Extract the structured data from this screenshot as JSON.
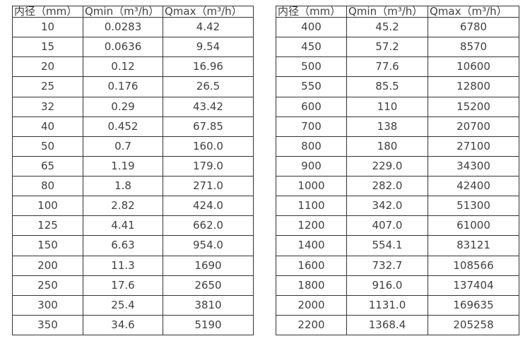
{
  "colors": {
    "text": "#404040",
    "border": "#333333",
    "background": "#ffffff"
  },
  "tables": [
    {
      "name": "flow-range-table-left",
      "headers": [
        "内径（mm）",
        "Qmin（m³/h）",
        "Qmax（m³/h）"
      ],
      "rows": [
        [
          "10",
          "0.0283",
          "4.42"
        ],
        [
          "15",
          "0.0636",
          "9.54"
        ],
        [
          "20",
          "0.12",
          "16.96"
        ],
        [
          "25",
          "0.176",
          "26.5"
        ],
        [
          "32",
          "0.29",
          "43.42"
        ],
        [
          "40",
          "0.452",
          "67.85"
        ],
        [
          "50",
          "0.7",
          "160.0"
        ],
        [
          "65",
          "1.19",
          "179.0"
        ],
        [
          "80",
          "1.8",
          "271.0"
        ],
        [
          "100",
          "2.82",
          "424.0"
        ],
        [
          "125",
          "4.41",
          "662.0"
        ],
        [
          "150",
          "6.63",
          "954.0"
        ],
        [
          "200",
          "11.3",
          "1690"
        ],
        [
          "250",
          "17.6",
          "2650"
        ],
        [
          "300",
          "25.4",
          "3810"
        ],
        [
          "350",
          "34.6",
          "5190"
        ]
      ]
    },
    {
      "name": "flow-range-table-right",
      "headers": [
        "内径（mm）",
        "Qmin（m³/h）",
        "Qmax（m³/h）"
      ],
      "rows": [
        [
          "400",
          "45.2",
          "6780"
        ],
        [
          "450",
          "57.2",
          "8570"
        ],
        [
          "500",
          "77.6",
          "10600"
        ],
        [
          "550",
          "85.5",
          "12800"
        ],
        [
          "600",
          "110",
          "15200"
        ],
        [
          "700",
          "138",
          "20700"
        ],
        [
          "800",
          "180",
          "27100"
        ],
        [
          "900",
          "229.0",
          "34300"
        ],
        [
          "1000",
          "282.0",
          "42400"
        ],
        [
          "1100",
          "342.0",
          "51300"
        ],
        [
          "1200",
          "407.0",
          "61000"
        ],
        [
          "1400",
          "554.1",
          "83121"
        ],
        [
          "1600",
          "732.7",
          "108566"
        ],
        [
          "1800",
          "916.0",
          "137404"
        ],
        [
          "2000",
          "1131.0",
          "169635"
        ],
        [
          "2200",
          "1368.4",
          "205258"
        ]
      ]
    }
  ]
}
